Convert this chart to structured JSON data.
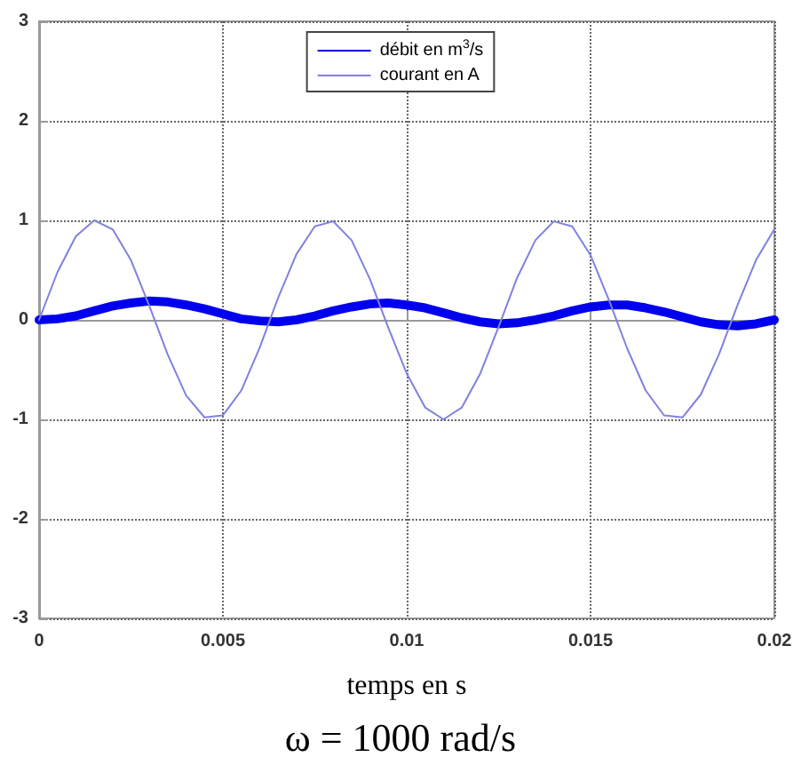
{
  "chart_data": {
    "type": "line",
    "xlabel": "temps en s",
    "annotations": [
      "ω = 1000 rad/s"
    ],
    "x": [
      0,
      0.0005,
      0.001,
      0.0015,
      0.002,
      0.0025,
      0.003,
      0.0035,
      0.004,
      0.0045,
      0.005,
      0.0055,
      0.006,
      0.0065,
      0.007,
      0.0075,
      0.008,
      0.0085,
      0.009,
      0.0095,
      0.01,
      0.0105,
      0.011,
      0.0115,
      0.012,
      0.0125,
      0.013,
      0.0135,
      0.014,
      0.0145,
      0.015,
      0.0155,
      0.016,
      0.0165,
      0.017,
      0.0175,
      0.018,
      0.0185,
      0.019,
      0.0195,
      0.02
    ],
    "series": [
      {
        "name": "débit en m$^{3}$/s",
        "color": "#0000ee",
        "values": [
          0,
          0.01,
          0.04,
          0.09,
          0.14,
          0.17,
          0.19,
          0.18,
          0.15,
          0.11,
          0.06,
          0.01,
          -0.01,
          -0.02,
          0,
          0.04,
          0.09,
          0.13,
          0.16,
          0.17,
          0.15,
          0.12,
          0.07,
          0.02,
          -0.02,
          -0.04,
          -0.03,
          0,
          0.04,
          0.09,
          0.13,
          0.15,
          0.15,
          0.12,
          0.08,
          0.03,
          -0.02,
          -0.05,
          -0.06,
          -0.04,
          0
        ]
      },
      {
        "name": "courant en A",
        "color": "#8080e0",
        "values": [
          0,
          0.48,
          0.84,
          1.0,
          0.91,
          0.6,
          0.14,
          -0.35,
          -0.76,
          -0.98,
          -0.96,
          -0.71,
          -0.28,
          0.22,
          0.66,
          0.94,
          0.99,
          0.8,
          0.41,
          -0.08,
          -0.54,
          -0.88,
          -1.0,
          -0.88,
          -0.54,
          -0.07,
          0.42,
          0.8,
          0.99,
          0.94,
          0.65,
          0.2,
          -0.29,
          -0.71,
          -0.96,
          -0.98,
          -0.75,
          -0.34,
          0.15,
          0.6,
          0.91
        ]
      }
    ],
    "xlim": [
      0,
      0.02
    ],
    "xticks": [
      0,
      0.005,
      0.01,
      0.015,
      0.02
    ],
    "ylim": [
      -3,
      3
    ],
    "yticks": [
      -3,
      -2,
      -1,
      0,
      1,
      2,
      3
    ],
    "grid": true,
    "legend": "top",
    "marker": "none",
    "line_style": "solid"
  }
}
